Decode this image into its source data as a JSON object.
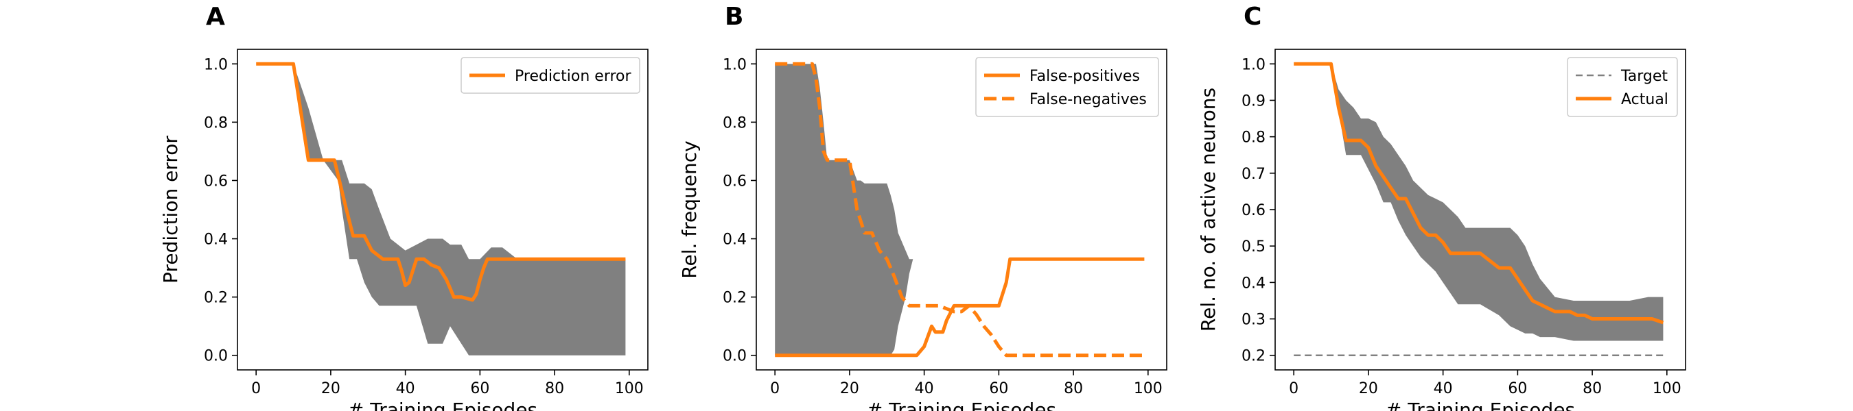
{
  "colors": {
    "line": "#ff7f0e",
    "band": "#808080",
    "target": "#808080",
    "frame": "#000000"
  },
  "chart_data": [
    {
      "type": "line",
      "panel": "A",
      "xlabel": "# Training Episodes",
      "ylabel": "Prediction error",
      "xlim": [
        -5,
        105
      ],
      "ylim": [
        -0.05,
        1.05
      ],
      "xticks": [
        0,
        20,
        40,
        60,
        80,
        100
      ],
      "yticks": [
        "0.0",
        "0.2",
        "0.4",
        "0.6",
        "0.8",
        "1.0"
      ],
      "legend_position": "top-right",
      "band": {
        "x": [
          0,
          10,
          14,
          18,
          22,
          23,
          25,
          27,
          29,
          31,
          33,
          36,
          40,
          43,
          46,
          50,
          52,
          55,
          57,
          60,
          63,
          66,
          70,
          80,
          90,
          99
        ],
        "lower": [
          1.0,
          1.0,
          0.67,
          0.67,
          0.6,
          0.5,
          0.33,
          0.33,
          0.25,
          0.2,
          0.17,
          0.17,
          0.17,
          0.17,
          0.04,
          0.04,
          0.1,
          0.04,
          0.0,
          0.0,
          0.0,
          0.0,
          0.0,
          0.0,
          0.0,
          0.0
        ],
        "upper": [
          1.0,
          1.0,
          0.85,
          0.67,
          0.67,
          0.67,
          0.59,
          0.59,
          0.59,
          0.57,
          0.5,
          0.4,
          0.36,
          0.38,
          0.4,
          0.4,
          0.38,
          0.38,
          0.33,
          0.33,
          0.37,
          0.37,
          0.33,
          0.33,
          0.33,
          0.33
        ]
      },
      "series": [
        {
          "name": "Prediction error",
          "style": "solid",
          "x": [
            0,
            10,
            14,
            18,
            21,
            24,
            26,
            29,
            31,
            34,
            36,
            38,
            39,
            40,
            41,
            42,
            43,
            45,
            47,
            49,
            51,
            52,
            53,
            54,
            55,
            58,
            59,
            60,
            61,
            62,
            63,
            65,
            70,
            80,
            90,
            99
          ],
          "y": [
            1.0,
            1.0,
            0.67,
            0.67,
            0.67,
            0.51,
            0.41,
            0.41,
            0.36,
            0.33,
            0.33,
            0.33,
            0.29,
            0.24,
            0.25,
            0.29,
            0.33,
            0.33,
            0.31,
            0.3,
            0.26,
            0.23,
            0.2,
            0.2,
            0.2,
            0.19,
            0.21,
            0.26,
            0.3,
            0.33,
            0.33,
            0.33,
            0.33,
            0.33,
            0.33,
            0.33
          ]
        }
      ]
    },
    {
      "type": "line",
      "panel": "B",
      "xlabel": "# Training Episodes",
      "ylabel": "Rel. frequency",
      "xlim": [
        -5,
        105
      ],
      "ylim": [
        -0.05,
        1.05
      ],
      "xticks": [
        0,
        20,
        40,
        60,
        80,
        100
      ],
      "yticks": [
        "0.0",
        "0.2",
        "0.4",
        "0.6",
        "0.8",
        "1.0"
      ],
      "legend_position": "top-right",
      "band": {
        "x": [
          0,
          10,
          11,
          12,
          13,
          14,
          16,
          20,
          22,
          23,
          24,
          26,
          28,
          29,
          30,
          31,
          32,
          33,
          35,
          36,
          37,
          40,
          45,
          50,
          55,
          60,
          70,
          80,
          90,
          99
        ],
        "lower": [
          0.0,
          0.0,
          0.0,
          0.0,
          0.0,
          0.0,
          0.0,
          0.0,
          0.0,
          0.0,
          0.0,
          0.0,
          0.0,
          0.0,
          0.0,
          0.0,
          0.02,
          0.1,
          0.2,
          0.28,
          0.33,
          0.33,
          0.33,
          0.33,
          0.33,
          0.33,
          0.33,
          0.33,
          0.33,
          0.33
        ],
        "upper": [
          1.0,
          1.0,
          1.0,
          0.92,
          0.8,
          0.67,
          0.67,
          0.67,
          0.6,
          0.6,
          0.59,
          0.59,
          0.59,
          0.59,
          0.59,
          0.55,
          0.5,
          0.42,
          0.36,
          0.33,
          0.33,
          0.33,
          0.33,
          0.33,
          0.33,
          0.33,
          0.33,
          0.33,
          0.33,
          0.33
        ]
      },
      "series": [
        {
          "name": "False-positives",
          "style": "solid",
          "x": [
            0,
            10,
            20,
            30,
            38,
            40,
            42,
            43,
            45,
            46,
            48,
            50,
            55,
            58,
            60,
            62,
            63,
            65,
            70,
            80,
            90,
            99
          ],
          "y": [
            0.0,
            0.0,
            0.0,
            0.0,
            0.0,
            0.03,
            0.1,
            0.08,
            0.08,
            0.12,
            0.17,
            0.17,
            0.17,
            0.17,
            0.17,
            0.25,
            0.33,
            0.33,
            0.33,
            0.33,
            0.33,
            0.33
          ]
        },
        {
          "name": "False-negatives",
          "style": "dashed",
          "x": [
            0,
            10,
            11,
            12,
            13,
            14,
            16,
            20,
            22,
            24,
            26,
            28,
            30,
            32,
            34,
            36,
            40,
            44,
            46,
            48,
            50,
            52,
            54,
            56,
            58,
            60,
            62,
            64,
            70,
            80,
            90,
            99
          ],
          "y": [
            1.0,
            1.0,
            0.95,
            0.85,
            0.7,
            0.67,
            0.67,
            0.67,
            0.5,
            0.42,
            0.42,
            0.36,
            0.33,
            0.27,
            0.2,
            0.17,
            0.17,
            0.17,
            0.16,
            0.15,
            0.15,
            0.17,
            0.14,
            0.1,
            0.07,
            0.03,
            0.0,
            0.0,
            0.0,
            0.0,
            0.0,
            0.0
          ]
        }
      ]
    },
    {
      "type": "line",
      "panel": "C",
      "xlabel": "# Training Episodes",
      "ylabel": "Rel. no. of active neurons",
      "xlim": [
        -5,
        105
      ],
      "ylim": [
        0.16,
        1.04
      ],
      "xticks": [
        0,
        20,
        40,
        60,
        80,
        100
      ],
      "yticks": [
        "0.2",
        "0.3",
        "0.4",
        "0.5",
        "0.6",
        "0.7",
        "0.8",
        "0.9",
        "1.0"
      ],
      "legend_position": "top-right",
      "band": {
        "x": [
          0,
          10,
          12,
          14,
          16,
          18,
          20,
          22,
          24,
          26,
          28,
          30,
          32,
          34,
          36,
          38,
          40,
          42,
          44,
          46,
          50,
          55,
          58,
          60,
          62,
          64,
          66,
          70,
          75,
          80,
          85,
          90,
          95,
          99
        ],
        "lower": [
          1.0,
          1.0,
          0.87,
          0.75,
          0.75,
          0.75,
          0.71,
          0.67,
          0.62,
          0.62,
          0.57,
          0.53,
          0.5,
          0.47,
          0.45,
          0.43,
          0.4,
          0.37,
          0.34,
          0.34,
          0.34,
          0.31,
          0.28,
          0.27,
          0.26,
          0.26,
          0.25,
          0.25,
          0.24,
          0.24,
          0.24,
          0.24,
          0.24,
          0.24
        ],
        "upper": [
          1.0,
          1.0,
          0.93,
          0.9,
          0.88,
          0.85,
          0.85,
          0.84,
          0.8,
          0.78,
          0.75,
          0.72,
          0.68,
          0.66,
          0.64,
          0.63,
          0.62,
          0.6,
          0.58,
          0.55,
          0.55,
          0.55,
          0.55,
          0.53,
          0.5,
          0.45,
          0.41,
          0.36,
          0.35,
          0.35,
          0.35,
          0.35,
          0.36,
          0.36
        ]
      },
      "series": [
        {
          "name": "Target",
          "style": "dashed-thin",
          "x": [
            0,
            99
          ],
          "y": [
            0.2,
            0.2
          ]
        },
        {
          "name": "Actual",
          "style": "solid",
          "x": [
            0,
            10,
            12,
            14,
            18,
            20,
            22,
            24,
            26,
            28,
            30,
            32,
            34,
            36,
            38,
            40,
            42,
            44,
            50,
            55,
            58,
            60,
            62,
            64,
            66,
            68,
            70,
            74,
            76,
            78,
            80,
            86,
            88,
            94,
            96,
            99
          ],
          "y": [
            1.0,
            1.0,
            0.88,
            0.79,
            0.79,
            0.77,
            0.72,
            0.69,
            0.66,
            0.63,
            0.63,
            0.59,
            0.55,
            0.53,
            0.53,
            0.51,
            0.48,
            0.48,
            0.48,
            0.44,
            0.44,
            0.41,
            0.38,
            0.35,
            0.34,
            0.33,
            0.32,
            0.32,
            0.31,
            0.31,
            0.3,
            0.3,
            0.3,
            0.3,
            0.3,
            0.29
          ]
        }
      ]
    }
  ]
}
